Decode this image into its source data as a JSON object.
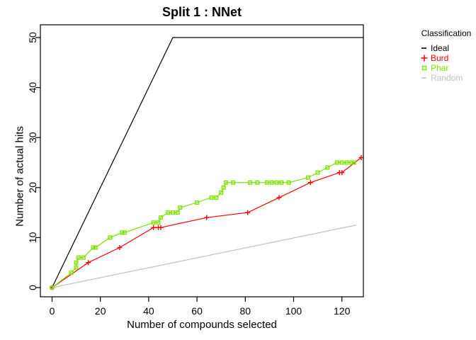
{
  "title": "Split 1 : NNet",
  "axes": {
    "xlabel": "Number of compounds selected",
    "ylabel": "Number of actual hits"
  },
  "legend": {
    "title": "Classification",
    "items": [
      {
        "label": "Ideal",
        "symbol": "dash",
        "color": "#000000"
      },
      {
        "label": "Burd",
        "symbol": "plus",
        "color": "#FF0000"
      },
      {
        "label": "Phar",
        "symbol": "square",
        "color": "#7CE300"
      },
      {
        "label": "Random",
        "symbol": "dash",
        "color": "#C0C0C0"
      }
    ]
  },
  "chart_data": {
    "type": "line",
    "title": "Split 1 : NNet",
    "xlabel": "Number of compounds selected",
    "ylabel": "Number of actual hits",
    "xlim": [
      0,
      130
    ],
    "ylim": [
      0,
      50
    ],
    "x_ticks": [
      0,
      20,
      40,
      60,
      80,
      100,
      120
    ],
    "y_ticks": [
      0,
      10,
      20,
      30,
      40,
      50
    ],
    "grid": false,
    "legend_position": "right",
    "legend_title": "Classification",
    "series": [
      {
        "name": "Ideal",
        "color": "#000000",
        "marker": "none",
        "points": [
          [
            0,
            0
          ],
          [
            50,
            50
          ],
          [
            129,
            50
          ]
        ]
      },
      {
        "name": "Burd",
        "color": "#FF0000",
        "marker": "plus",
        "points": [
          [
            0,
            0
          ],
          [
            15,
            5
          ],
          [
            28,
            8
          ],
          [
            42,
            12
          ],
          [
            44,
            12
          ],
          [
            45,
            12
          ],
          [
            64,
            14
          ],
          [
            81,
            15
          ],
          [
            94,
            18
          ],
          [
            107,
            21
          ],
          [
            119,
            23
          ],
          [
            120,
            23
          ],
          [
            128,
            26
          ]
        ]
      },
      {
        "name": "Phar",
        "color": "#7CE300",
        "marker": "square",
        "points": [
          [
            0,
            0
          ],
          [
            8,
            3
          ],
          [
            10,
            4
          ],
          [
            10,
            5
          ],
          [
            11,
            6
          ],
          [
            13,
            6
          ],
          [
            17,
            8
          ],
          [
            18,
            8
          ],
          [
            24,
            10
          ],
          [
            29,
            11
          ],
          [
            30,
            11
          ],
          [
            42,
            13
          ],
          [
            44,
            13
          ],
          [
            45,
            14
          ],
          [
            48,
            15
          ],
          [
            50,
            15
          ],
          [
            52,
            15
          ],
          [
            53,
            16
          ],
          [
            60,
            17
          ],
          [
            66,
            18
          ],
          [
            68,
            18
          ],
          [
            70,
            19
          ],
          [
            71,
            20
          ],
          [
            72,
            21
          ],
          [
            75,
            21
          ],
          [
            82,
            21
          ],
          [
            85,
            21
          ],
          [
            89,
            21
          ],
          [
            91,
            21
          ],
          [
            93,
            21
          ],
          [
            95,
            21
          ],
          [
            98,
            21
          ],
          [
            106,
            22
          ],
          [
            110,
            23
          ],
          [
            114,
            24
          ],
          [
            118,
            25
          ],
          [
            120,
            25
          ],
          [
            122,
            25
          ],
          [
            124,
            25
          ],
          [
            125,
            25
          ]
        ]
      },
      {
        "name": "Random",
        "color": "#C0C0C0",
        "marker": "none",
        "points": [
          [
            0,
            0
          ],
          [
            126,
            12.5
          ]
        ]
      }
    ]
  }
}
